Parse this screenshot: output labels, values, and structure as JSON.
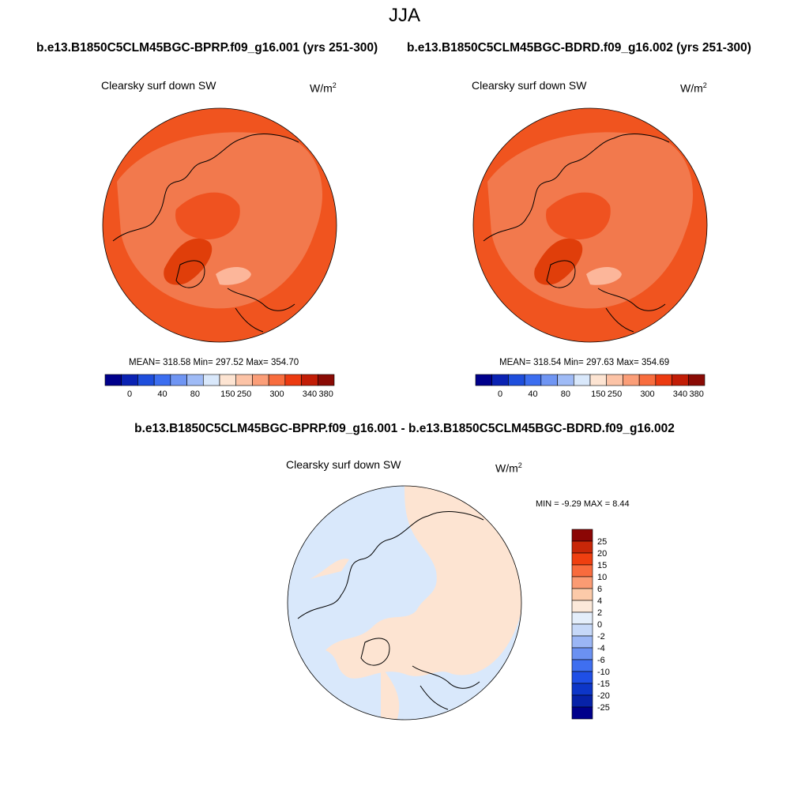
{
  "figure": {
    "season": "JJA",
    "case_a_title": "b.e13.B1850C5CLM45BGC-BPRP.f09_g16.001 (yrs 251-300)",
    "case_b_title": "b.e13.B1850C5CLM45BGC-BDRD.f09_g16.002 (yrs 251-300)",
    "diff_title": "b.e13.B1850C5CLM45BGC-BPRP.f09_g16.001 - b.e13.B1850C5CLM45BGC-BDRD.f09_g16.002"
  },
  "panels": {
    "left": {
      "variable": "Clearsky surf down SW",
      "units_base": "W/m",
      "units_exp": "2",
      "stats": "MEAN= 318.58  Min= 297.52  Max= 354.70"
    },
    "right": {
      "variable": "Clearsky surf down SW",
      "units_base": "W/m",
      "units_exp": "2",
      "stats": "MEAN= 318.54  Min= 297.63  Max= 354.69"
    },
    "diff": {
      "variable": "Clearsky surf down SW",
      "units_base": "W/m",
      "units_exp": "2",
      "minmax": "MIN =  -9.29 MAX =   8.44"
    }
  },
  "colors": {
    "abs_bins": [
      "#00008b",
      "#0a22b3",
      "#1e4edc",
      "#3c6ef0",
      "#6f95f3",
      "#9fbbf6",
      "#d9e8fb",
      "#fde4d2",
      "#fcc3a6",
      "#fb9e78",
      "#f86d3e",
      "#ec3a10",
      "#c21d06",
      "#8a0b05"
    ],
    "diff_bins": [
      "#00008b",
      "#0722a8",
      "#0d36c8",
      "#1f4fe6",
      "#3f6ff0",
      "#6b91f2",
      "#9bb6f5",
      "#c6d8f8",
      "#e4eefb",
      "#fce9da",
      "#fccaa9",
      "#fb9b73",
      "#f86b3d",
      "#ef3f10",
      "#c82708",
      "#8b0605"
    ],
    "map_outer": "#f0541f",
    "map_mid": "#f2794d",
    "map_inner": "#ef5220",
    "greenland": "#e03e0a",
    "barents": "#fcb69a",
    "diff_pos": "#fde4d2",
    "diff_neg": "#d9e8fb"
  },
  "chart_data": [
    {
      "type": "heatmap",
      "projection": "north polar stereographic",
      "title": "Clearsky surf down SW",
      "units": "W/m2",
      "mean": 318.58,
      "min": 297.52,
      "max": 354.7,
      "colorbar_levels": [
        "0",
        "40",
        "80",
        "150",
        "250",
        "300",
        "340",
        "380"
      ]
    },
    {
      "type": "heatmap",
      "projection": "north polar stereographic",
      "title": "Clearsky surf down SW",
      "units": "W/m2",
      "mean": 318.54,
      "min": 297.63,
      "max": 354.69,
      "colorbar_levels": [
        "0",
        "40",
        "80",
        "150",
        "250",
        "300",
        "340",
        "380"
      ]
    },
    {
      "type": "heatmap",
      "projection": "north polar stereographic",
      "title": "Clearsky surf down SW",
      "units": "W/m2",
      "min": -9.29,
      "max": 8.44,
      "colorbar_levels": [
        "25",
        "20",
        "15",
        "10",
        "6",
        "4",
        "2",
        "0",
        "-2",
        "-4",
        "-6",
        "-10",
        "-15",
        "-20",
        "-25"
      ]
    }
  ]
}
